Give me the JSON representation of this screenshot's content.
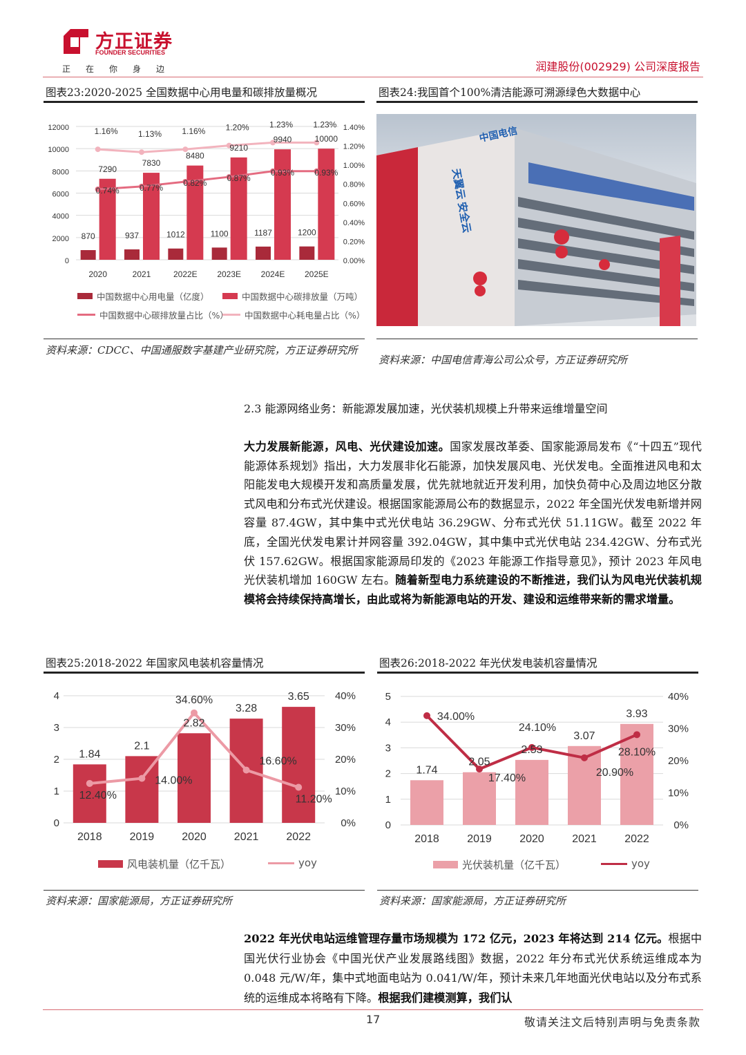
{
  "header": {
    "logo_cn": "方正证券",
    "logo_en": "FOUNDER SECURITIES",
    "slogan": "正在你身边",
    "report_title": "润建股份(002929) 公司深度报告",
    "brand_color": "#c8102e"
  },
  "fig23": {
    "title": "图表23:2020-2025 全国数据中心用电量和碳排放量概况",
    "source": "资料来源：CDCC、中国通服数字基建产业研究院，方正证券研究所",
    "legend": [
      "中国数据中心用电量（亿度）",
      "中国数据中心碳排放量（万吨）",
      "中国数据中心碳排放量占比（%）",
      "中国数据中心耗电量占比（%）"
    ]
  },
  "fig24": {
    "title": "图表24:我国首个100%清洁能源可溯源绿色大数据中心",
    "source": "资料来源：中国电信青海公司公众号，方正证券研究所",
    "photo_signage": [
      "中国电信",
      "天翼云 安全云"
    ]
  },
  "section_heading": "2.3 能源网络业务：新能源发展加速，光伏装机规模上升带来运维增量空间",
  "paragraph1": {
    "lead": "大力发展新能源，风电、光伏建设加速。",
    "body": "国家发展改革委、国家能源局发布《“十四五”现代能源体系规划》指出，大力发展非化石能源，加快发展风电、光伏发电。全面推进风电和太阳能发电大规模开发和高质量发展，优先就地就近开发利用，加快负荷中心及周边地区分散式风电和分布式光伏建设。根据国家能源局公布的数据显示，2022 年全国光伏发电新增并网容量 87.4GW，其中集中式光伏电站 36.29GW、分布式光伏 51.11GW。截至 2022 年底，全国光伏发电累计并网容量 392.04GW，其中集中式光伏电站 234.42GW、分布式光伏 157.62GW。根据国家能源局印发的《2023 年能源工作指导意见》，预计 2023 年风电光伏装机增加 160GW 左右。",
    "tail": "随着新型电力系统建设的不断推进，我们认为风电光伏装机规模将会持续保持高增长，由此或将为新能源电站的开发、建设和运维带来新的需求增量。"
  },
  "fig25": {
    "title": "图表25:2018-2022 年国家风电装机容量情况",
    "source": "资料来源：国家能源局，方正证券研究所",
    "legend": [
      "风电装机量（亿千瓦）",
      "yoy"
    ]
  },
  "fig26": {
    "title": "图表26:2018-2022 年光伏发电装机容量情况",
    "source": "资料来源：国家能源局，方正证券研究所",
    "legend": [
      "光伏装机量（亿千瓦）",
      "yoy"
    ]
  },
  "paragraph2": {
    "lead": "2022 年光伏电站运维管理存量市场规模为 172 亿元，2023 年将达到 214 亿元。",
    "body": "根据中国光伏行业协会《中国光伏产业发展路线图》数据，2022 年分布式光伏系统运维成本为 0.048 元/W/年，集中式地面电站为 0.041/W/年，预计未来几年地面光伏电站以及分布式系统的运维成本将略有下降。",
    "tail": "根据我们建模测算，我们认"
  },
  "footer": {
    "page_number": "17",
    "disclaimer": "敬请关注文后特别声明与免责条款"
  },
  "chart_data": [
    {
      "type": "bar+line",
      "categories": [
        "2020",
        "2021",
        "2022E",
        "2023E",
        "2024E",
        "2025E"
      ],
      "ylim": [
        0,
        12000
      ],
      "yticks": [
        "0",
        "2000",
        "4000",
        "6000",
        "8000",
        "10000",
        "12000"
      ],
      "y2lim": [
        0,
        1.4
      ],
      "y2ticks": [
        "0.00%",
        "0.20%",
        "0.40%",
        "0.60%",
        "0.80%",
        "1.00%",
        "1.20%",
        "1.40%"
      ],
      "grid": true,
      "legend_position": "bottom",
      "series": [
        {
          "name": "中国数据中心用电量（亿度）",
          "kind": "bar",
          "axis": "left",
          "color": "#a92a3a",
          "values": [
            870,
            937,
            1012,
            1100,
            1187,
            1200
          ],
          "labels": [
            "870",
            "937",
            "1012",
            "1100",
            "1187",
            "1200"
          ]
        },
        {
          "name": "中国数据中心碳排放量（万吨）",
          "kind": "bar",
          "axis": "left",
          "color": "#d53a50",
          "values": [
            7290,
            7830,
            8480,
            9210,
            9940,
            10000
          ],
          "labels": [
            "7290",
            "7830",
            "8480",
            "9210",
            "9940",
            "10000"
          ]
        },
        {
          "name": "中国数据中心碳排放量占比（%）",
          "kind": "line",
          "axis": "right",
          "color": "#e46b80",
          "values": [
            0.74,
            0.77,
            0.82,
            0.87,
            0.93,
            0.93
          ],
          "labels": [
            "0.74%",
            "0.77%",
            "0.82%",
            "0.87%",
            "0.93%",
            "0.93%"
          ]
        },
        {
          "name": "中国数据中心耗电量占比（%）",
          "kind": "line",
          "axis": "right",
          "color": "#f2b3bd",
          "values": [
            1.16,
            1.13,
            1.16,
            1.2,
            1.23,
            1.23
          ],
          "labels": [
            "1.16%",
            "1.13%",
            "1.16%",
            "1.20%",
            "1.23%",
            "1.23%"
          ]
        }
      ]
    },
    {
      "type": "bar+line",
      "categories": [
        "2018",
        "2019",
        "2020",
        "2021",
        "2022"
      ],
      "ylim": [
        0,
        4
      ],
      "yticks": [
        "0",
        "1",
        "2",
        "3",
        "4"
      ],
      "y2lim": [
        0,
        40
      ],
      "y2ticks": [
        "0%",
        "10%",
        "20%",
        "30%",
        "40%"
      ],
      "grid": true,
      "legend_position": "bottom",
      "series": [
        {
          "name": "风电装机量（亿千瓦）",
          "kind": "bar",
          "axis": "left",
          "color": "#c8374a",
          "values": [
            1.84,
            2.1,
            2.82,
            3.28,
            3.65
          ],
          "labels": [
            "1.84",
            "2.1",
            "2.82",
            "3.28",
            "3.65"
          ]
        },
        {
          "name": "yoy",
          "kind": "line",
          "axis": "right",
          "color": "#ec9aa5",
          "values": [
            12.4,
            14.0,
            34.6,
            16.6,
            11.2
          ],
          "labels": [
            "12.40%",
            "14.00%",
            "34.60%",
            "16.60%",
            "11.20%"
          ]
        }
      ]
    },
    {
      "type": "bar+line",
      "categories": [
        "2018",
        "2019",
        "2020",
        "2021",
        "2022"
      ],
      "ylim": [
        0,
        5
      ],
      "yticks": [
        "0",
        "1",
        "2",
        "3",
        "4",
        "5"
      ],
      "y2lim": [
        0,
        40
      ],
      "y2ticks": [
        "0%",
        "10%",
        "20%",
        "30%",
        "40%"
      ],
      "grid": true,
      "legend_position": "bottom",
      "series": [
        {
          "name": "光伏装机量（亿千瓦）",
          "kind": "bar",
          "axis": "left",
          "color": "#eba0a8",
          "values": [
            1.74,
            2.05,
            2.53,
            3.07,
            3.93
          ],
          "labels": [
            "1.74",
            "2.05",
            "2.53",
            "3.07",
            "3.93"
          ]
        },
        {
          "name": "yoy",
          "kind": "line",
          "axis": "right",
          "color": "#bf2d45",
          "values": [
            34.0,
            17.4,
            24.1,
            20.9,
            28.1
          ],
          "labels": [
            "34.00%",
            "17.40%",
            "24.10%",
            "20.90%",
            "28.10%"
          ]
        }
      ]
    }
  ]
}
